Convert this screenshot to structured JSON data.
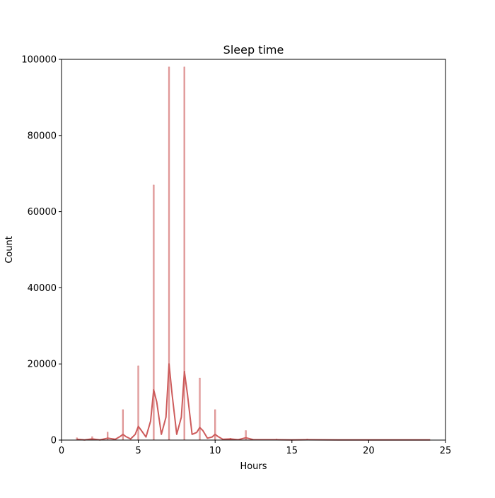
{
  "chart_data": {
    "type": "bar",
    "title": "Sleep time",
    "xlabel": "Hours",
    "ylabel": "Count",
    "xlim": [
      0,
      25
    ],
    "ylim": [
      0,
      100000
    ],
    "x_ticks": [
      0,
      5,
      10,
      15,
      20,
      25
    ],
    "y_ticks": [
      0,
      20000,
      40000,
      60000,
      80000,
      100000
    ],
    "grid": false,
    "colors": {
      "bars": "#cd5c5c",
      "kde": "#cd5c5c"
    },
    "histogram": {
      "x": [
        1,
        2,
        3,
        4,
        5,
        6,
        7,
        8,
        9,
        10,
        11,
        12,
        13,
        14,
        15,
        16,
        18,
        20,
        24
      ],
      "values": [
        600,
        900,
        2100,
        8000,
        19500,
        67000,
        98000,
        98000,
        16300,
        8000,
        500,
        2500,
        150,
        300,
        100,
        300,
        100,
        50,
        50
      ]
    },
    "kde": {
      "x": [
        1,
        1.5,
        2,
        2.5,
        3,
        3.5,
        3.8,
        4,
        4.2,
        4.5,
        4.8,
        5,
        5.2,
        5.5,
        5.8,
        6,
        6.2,
        6.5,
        6.8,
        7,
        7.2,
        7.5,
        7.8,
        8,
        8.2,
        8.5,
        8.8,
        9,
        9.2,
        9.5,
        9.8,
        10,
        10.2,
        10.5,
        11,
        11.5,
        12,
        12.5,
        13,
        14,
        15,
        16,
        18,
        20,
        24
      ],
      "values": [
        200,
        50,
        300,
        50,
        500,
        200,
        900,
        1500,
        900,
        300,
        1500,
        3600,
        2500,
        800,
        5000,
        13200,
        10000,
        1500,
        6000,
        20000,
        12000,
        1500,
        6000,
        18000,
        12000,
        1500,
        2000,
        3300,
        2500,
        500,
        800,
        1500,
        900,
        200,
        300,
        100,
        600,
        100,
        100,
        100,
        50,
        100,
        50,
        50,
        50
      ]
    }
  }
}
